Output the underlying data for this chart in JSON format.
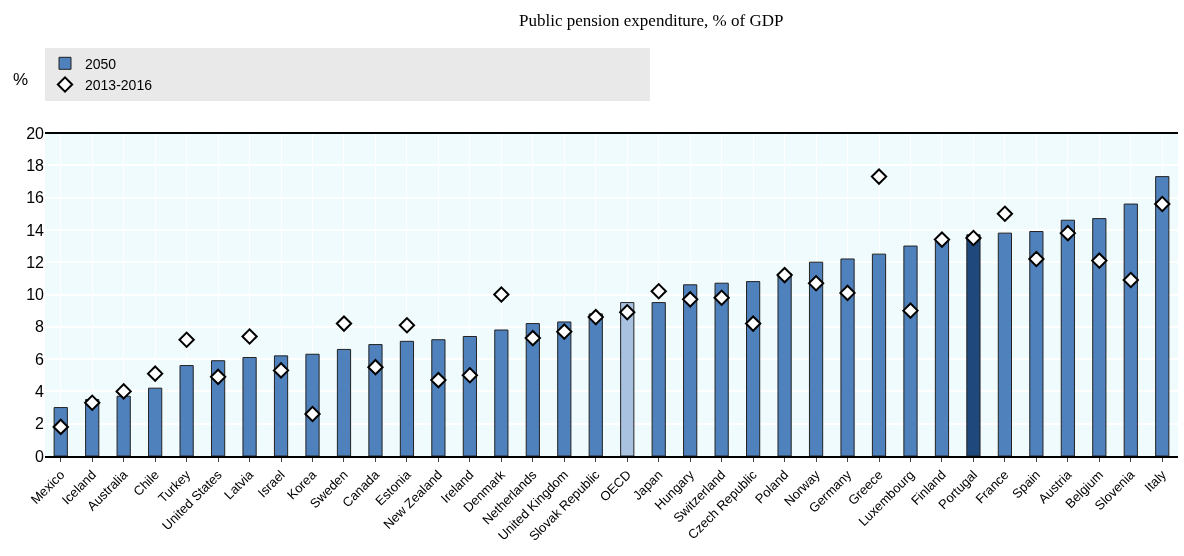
{
  "chart_data": {
    "type": "bar",
    "title": "Public pension expenditure, % of GDP",
    "ylabel": "%",
    "categories": [
      "Mexico",
      "Iceland",
      "Australia",
      "Chile",
      "Turkey",
      "United States",
      "Latvia",
      "Israel",
      "Korea",
      "Sweden",
      "Canada",
      "Estonia",
      "New Zealand",
      "Ireland",
      "Denmark",
      "Netherlands",
      "United Kingdom",
      "Slovak Republic",
      "OECD",
      "Japan",
      "Hungary",
      "Switzerland",
      "Czech Republic",
      "Poland",
      "Norway",
      "Germany",
      "Greece",
      "Luxembourg",
      "Finland",
      "Portugal",
      "France",
      "Spain",
      "Austria",
      "Belgium",
      "Slovenia",
      "Italy"
    ],
    "series": [
      {
        "name": "2050",
        "color": "#4f81bd",
        "colors": [
          "#4f81bd",
          "#4f81bd",
          "#4f81bd",
          "#4f81bd",
          "#4f81bd",
          "#4f81bd",
          "#4f81bd",
          "#4f81bd",
          "#4f81bd",
          "#4f81bd",
          "#4f81bd",
          "#4f81bd",
          "#4f81bd",
          "#4f81bd",
          "#4f81bd",
          "#4f81bd",
          "#4f81bd",
          "#4f81bd",
          "#a9c2e0",
          "#4f81bd",
          "#4f81bd",
          "#4f81bd",
          "#4f81bd",
          "#4f81bd",
          "#4f81bd",
          "#4f81bd",
          "#4f81bd",
          "#4f81bd",
          "#4f81bd",
          "#1f497d",
          "#4f81bd",
          "#4f81bd",
          "#4f81bd",
          "#4f81bd",
          "#4f81bd",
          "#4f81bd"
        ],
        "values": [
          3.0,
          3.5,
          3.7,
          4.2,
          5.6,
          5.9,
          6.1,
          6.2,
          6.3,
          6.6,
          6.9,
          7.1,
          7.2,
          7.4,
          7.8,
          8.2,
          8.3,
          8.8,
          9.5,
          9.5,
          10.6,
          10.7,
          10.8,
          11.3,
          12.0,
          12.2,
          12.5,
          13.0,
          13.3,
          13.7,
          13.8,
          13.9,
          14.6,
          14.7,
          15.6,
          17.3
        ]
      },
      {
        "name": "2013-2016",
        "type": "scatter",
        "marker": "diamond",
        "color": "#ffffff",
        "values": [
          1.8,
          3.3,
          4.0,
          5.1,
          7.2,
          4.9,
          7.4,
          5.3,
          2.6,
          8.2,
          5.5,
          8.1,
          4.7,
          5.0,
          10.0,
          7.3,
          7.7,
          8.6,
          8.9,
          10.2,
          9.7,
          9.8,
          8.2,
          11.2,
          10.7,
          10.1,
          17.3,
          9.0,
          13.4,
          13.5,
          15.0,
          12.2,
          13.8,
          12.1,
          10.9,
          15.6
        ]
      }
    ],
    "ylim": [
      0,
      20
    ],
    "yticks": [
      0,
      2,
      4,
      6,
      8,
      10,
      12,
      14,
      16,
      18,
      20
    ],
    "grid": true,
    "legend": "top"
  }
}
